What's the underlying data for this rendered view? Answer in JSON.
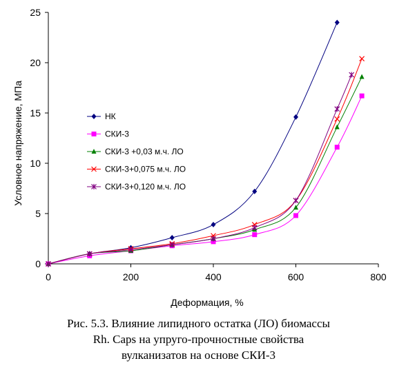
{
  "caption": {
    "line1": "Рис. 5.3. Влияние липидного остатка (ЛО) биомассы",
    "line2": "Rh. Caps на упруго-прочностные свойства",
    "line3": "вулканизатов на основе СКИ-3"
  },
  "chart_data": {
    "type": "line",
    "xlabel": "Деформация,  %",
    "ylabel": "Условное напряжение, МПа",
    "xlim": [
      0,
      800
    ],
    "ylim": [
      0,
      25
    ],
    "xticks": [
      "0",
      "200",
      "400",
      "600",
      "800"
    ],
    "yticks": [
      "0",
      "5",
      "10",
      "15",
      "20",
      "25"
    ],
    "grid": false,
    "legend_position": "upper-left",
    "smooth": true,
    "series": [
      {
        "name": "НК",
        "color": "#000080",
        "marker": "diamond",
        "x": [
          0,
          100,
          200,
          300,
          400,
          500,
          600,
          700
        ],
        "y": [
          0,
          1.0,
          1.6,
          2.6,
          3.9,
          7.2,
          14.6,
          24.0
        ]
      },
      {
        "name": "СКИ-3",
        "color": "#ff00ff",
        "marker": "square",
        "x": [
          0,
          100,
          200,
          300,
          400,
          500,
          600,
          700,
          760
        ],
        "y": [
          0,
          0.8,
          1.3,
          1.8,
          2.2,
          2.9,
          4.8,
          11.6,
          16.7
        ]
      },
      {
        "name": "СКИ-3 +0,03 м.ч. ЛО",
        "color": "#008000",
        "marker": "triangle",
        "x": [
          0,
          100,
          200,
          300,
          400,
          500,
          600,
          700,
          760
        ],
        "y": [
          0,
          1.0,
          1.3,
          1.9,
          2.5,
          3.4,
          5.6,
          13.6,
          18.6
        ]
      },
      {
        "name": "СКИ-3+0,075 м.ч. ЛО",
        "color": "#ff0000",
        "marker": "x",
        "x": [
          0,
          100,
          200,
          300,
          400,
          500,
          600,
          700,
          760
        ],
        "y": [
          0,
          1.0,
          1.5,
          2.0,
          2.8,
          3.9,
          6.3,
          14.4,
          20.4
        ]
      },
      {
        "name": "СКИ-3+0,120 м.ч. ЛО",
        "color": "#800080",
        "marker": "star",
        "x": [
          0,
          100,
          200,
          300,
          400,
          500,
          600,
          700,
          735
        ],
        "y": [
          0,
          1.0,
          1.4,
          1.9,
          2.5,
          3.6,
          6.3,
          15.4,
          18.8
        ]
      }
    ]
  }
}
